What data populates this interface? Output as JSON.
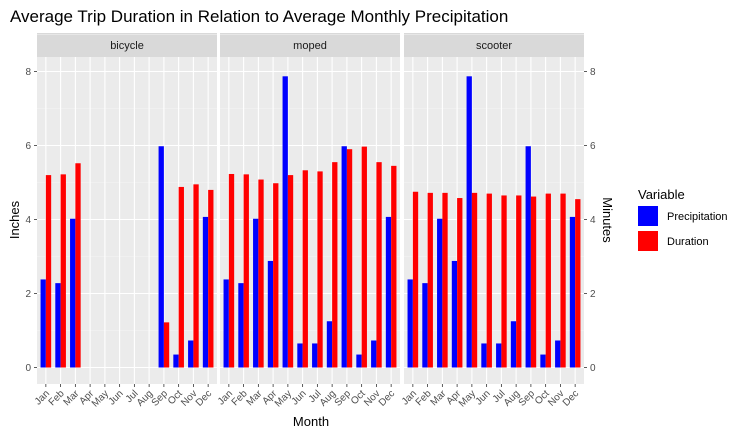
{
  "chart_data": {
    "type": "bar",
    "title": "Average Trip Duration in Relation to Average Monthly Precipitation",
    "xlabel": "Month",
    "ylabel": "Inches",
    "y2label": "Minutes",
    "ylim": [
      0,
      9
    ],
    "yticks": [
      0,
      2,
      4,
      6,
      8
    ],
    "categories": [
      "Jan",
      "Feb",
      "Mar",
      "Apr",
      "May",
      "Jun",
      "Jul",
      "Aug",
      "Sep",
      "Oct",
      "Nov",
      "Dec"
    ],
    "legend": {
      "title": "Variable",
      "position": "right",
      "entries": [
        {
          "name": "Precipitation",
          "color": "#0000ff"
        },
        {
          "name": "Duration",
          "color": "#ff0000"
        }
      ]
    },
    "facets": [
      {
        "label": "bicycle",
        "series": [
          {
            "name": "Precipitation",
            "values": [
              2.38,
              2.28,
              4.02,
              null,
              null,
              null,
              null,
              null,
              5.98,
              0.35,
              0.73,
              4.07
            ]
          },
          {
            "name": "Duration",
            "values": [
              5.2,
              5.22,
              5.52,
              null,
              null,
              null,
              null,
              null,
              1.22,
              4.88,
              4.95,
              4.8
            ]
          }
        ]
      },
      {
        "label": "moped",
        "series": [
          {
            "name": "Precipitation",
            "values": [
              2.38,
              2.28,
              4.02,
              2.88,
              7.87,
              0.65,
              0.65,
              1.25,
              5.98,
              0.35,
              0.73,
              4.07
            ]
          },
          {
            "name": "Duration",
            "values": [
              5.23,
              5.22,
              5.08,
              4.98,
              5.2,
              5.33,
              5.3,
              5.55,
              5.9,
              5.97,
              5.55,
              5.45
            ]
          }
        ]
      },
      {
        "label": "scooter",
        "series": [
          {
            "name": "Precipitation",
            "values": [
              2.38,
              2.28,
              4.02,
              2.88,
              7.87,
              0.65,
              0.65,
              1.25,
              5.98,
              0.35,
              0.73,
              4.07
            ]
          },
          {
            "name": "Duration",
            "values": [
              4.75,
              4.72,
              4.72,
              4.58,
              4.72,
              4.7,
              4.65,
              4.65,
              4.62,
              4.7,
              4.7,
              4.55
            ]
          }
        ]
      }
    ],
    "grid": true
  }
}
